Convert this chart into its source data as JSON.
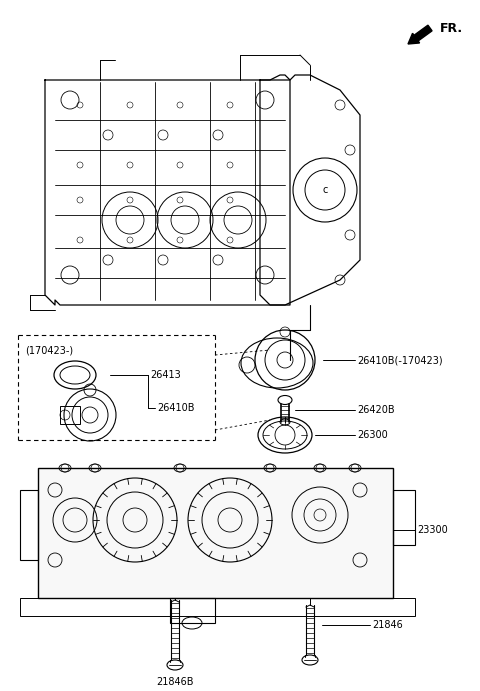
{
  "background_color": "#ffffff",
  "fr_label": "FR.",
  "parts_labels": {
    "26413": "26413",
    "26410B_inset": "26410B",
    "26410B_main": "26410B(-170423)",
    "26420B": "26420B",
    "26300": "26300",
    "23300": "23300",
    "21846": "21846",
    "21846B": "21846B"
  },
  "inset_label": "(170423-)"
}
